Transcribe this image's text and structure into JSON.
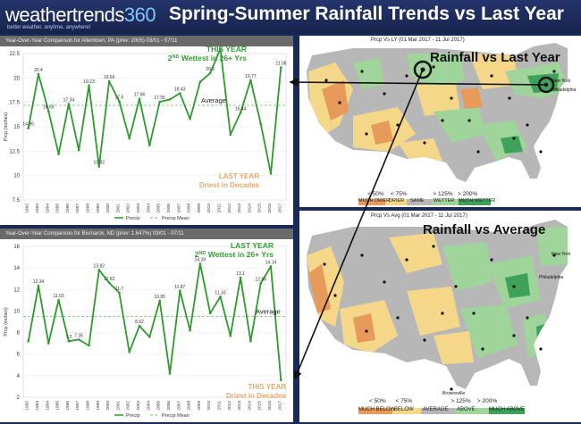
{
  "header": {
    "logo_text": "weathertrends",
    "logo_num": "360",
    "logo_tagline": "better weather, anytime, anywhere!",
    "title": "Spring-Summer Rainfall Trends vs Last Year"
  },
  "colors": {
    "much_below": "#e89a5a",
    "below": "#f5d78a",
    "average": "#b7b7b7",
    "above": "#9fd49a",
    "much_above": "#3fa25a",
    "line": "#2e9a2e",
    "mean": "#8fd08f",
    "annotation_green": "#2fa02f",
    "annotation_orange": "#e6a96a"
  },
  "chart_data": [
    {
      "type": "line",
      "title": "Year-Over-Year Comparison for Allentown, PA (prev: 2005) 03/01 - 07/11",
      "xlabel": "",
      "ylabel": "Prcp (inches)",
      "ylim": [
        7.5,
        22.5
      ],
      "yticks": [
        "7.5",
        "10",
        "12.5",
        "15",
        "17.5",
        "20",
        "22.5"
      ],
      "categories": [
        "1992",
        "1993",
        "1994",
        "1995",
        "1996",
        "1997",
        "1998",
        "1999",
        "2000",
        "2001",
        "2002",
        "2003",
        "2004",
        "2005",
        "2006",
        "2007",
        "2008",
        "2009",
        "2010",
        "2011",
        "2012",
        "2013",
        "2014",
        "2015",
        "2016",
        "2017"
      ],
      "values": [
        14.85,
        20.4,
        16.59,
        12.2,
        17.34,
        12.6,
        19.23,
        10.92,
        19.66,
        17.6,
        13.8,
        17.86,
        13.1,
        17.55,
        17.8,
        18.43,
        15.8,
        19.6,
        20.5,
        23,
        14.2,
        16.44,
        19.77,
        15.3,
        10.2,
        21.08
      ],
      "labels": [
        "14.85",
        "20.4",
        "16.59",
        "",
        "17.34",
        "",
        "19.23",
        "10.92",
        "19.66",
        "17.6",
        "",
        "17.86",
        "",
        "17.55",
        "",
        "18.43",
        "",
        "",
        "20.5",
        "",
        "",
        "16.44",
        "19.77",
        "",
        "",
        "21.08"
      ],
      "mean": 17.2,
      "mean_label": "Average",
      "annotation_top": {
        "line1": "THIS YEAR",
        "line2a": "2",
        "line2sup": "ND",
        "line2b": " Wettest in 26+ Yrs"
      },
      "annotation_bottom": {
        "line1": "LAST YEAR",
        "line2": "Driest in Decades"
      },
      "legend": [
        "Precip",
        "Precip Mean"
      ]
    },
    {
      "type": "line",
      "title": "Year-Over-Year Comparison for Bismarck, ND (prev: 1.647%) 03/01 - 07/11",
      "xlabel": "",
      "ylabel": "Prcp (inches)",
      "ylim": [
        2,
        16
      ],
      "yticks": [
        "2",
        "4",
        "6",
        "8",
        "10",
        "12",
        "14",
        "16"
      ],
      "categories": [
        "1992",
        "1993",
        "1994",
        "1995",
        "1996",
        "1997",
        "1998",
        "1999",
        "2000",
        "2001",
        "2002",
        "2003",
        "2004",
        "2005",
        "2006",
        "2007",
        "2008",
        "2009",
        "2010",
        "2011",
        "2012",
        "2013",
        "2014",
        "2015",
        "2016",
        "2017"
      ],
      "values": [
        7.2,
        12.34,
        7.0,
        11.03,
        7.2,
        7.35,
        6.8,
        13.82,
        12.62,
        11.7,
        6.2,
        8.62,
        7.6,
        10.95,
        4.2,
        11.87,
        8.2,
        14.39,
        9.8,
        11.33,
        7.7,
        13.1,
        7.2,
        12.58,
        14.14,
        3.59
      ],
      "labels": [
        "",
        "12.34",
        "",
        "11.03",
        "7.2",
        "7.35",
        "",
        "13.82",
        "12.62",
        "11.7",
        "",
        "8.62",
        "",
        "10.95",
        "",
        "11.87",
        "",
        "14.39",
        "",
        "11.33",
        "",
        "13.1",
        "",
        "12.58",
        "14.14",
        ""
      ],
      "mean": 9.5,
      "mean_label": "Average",
      "annotation_top": {
        "line1": "LAST YEAR",
        "line2a": "2",
        "line2sup": "ND",
        "line2b": " Wettest in 26+ Yrs"
      },
      "annotation_bottom": {
        "line1": "THIS YEAR",
        "line2": "Driest in Decades"
      },
      "legend": [
        "Precip",
        "Precip Mean"
      ]
    }
  ],
  "maps": {
    "top": {
      "subtitle": "Prcp Vs LY (01 Mar 2017 - 11 Jul 2017)",
      "headline": "Rainfall vs Last Year",
      "legend_thresholds": [
        "< 50%",
        "< 75%",
        "> 125%",
        "> 200%"
      ],
      "legend_labels": [
        "MUCH DRIER",
        "DRIER",
        "SAME",
        "WETTER",
        "MUCH WETTER"
      ],
      "city_new_york": "New York",
      "city_philadelphia": "Philadelphia"
    },
    "bottom": {
      "subtitle": "Prcp Vs Avg (01 Mar 2017 - 11 Jul 2017)",
      "headline": "Rainfall vs Average",
      "legend_thresholds": [
        "< 50%",
        "< 75%",
        "> 125%",
        "> 200%"
      ],
      "legend_labels": [
        "MUCH BELOW",
        "BELOW",
        "AVERAGE",
        "ABOVE",
        "MUCH ABOVE"
      ],
      "city_philadelphia": "Philadelphia",
      "city_new_york": "New York",
      "city_brownsville": "Brownsville"
    }
  }
}
